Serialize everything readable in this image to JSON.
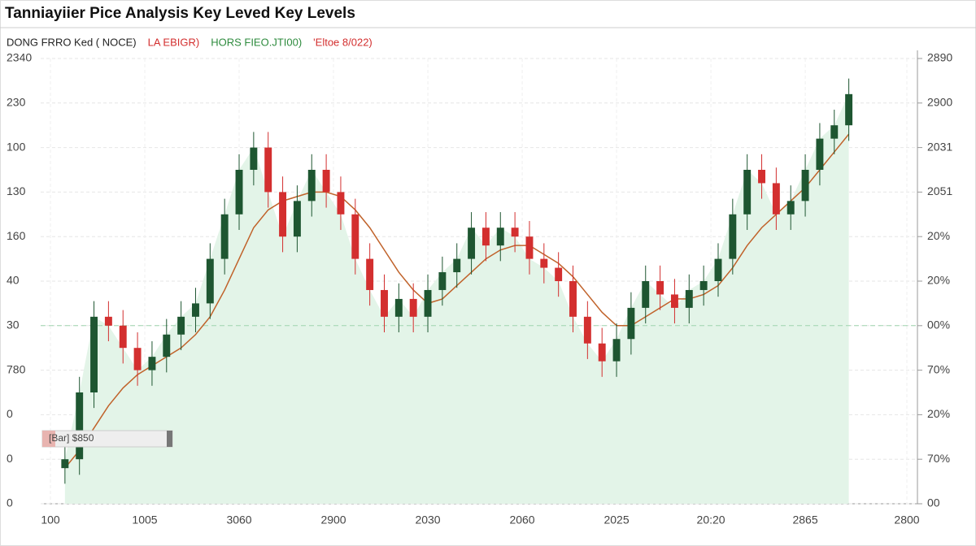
{
  "chart_data": {
    "type": "candlestick",
    "title": "Tanniayiier Pice Analysis Key Leved Key Levels",
    "legend": [
      {
        "text": "DONG FRRO  Ked  ( NOCE)",
        "color": "#222222"
      },
      {
        "text": "LA EBIGR)",
        "color": "#d32f2f"
      },
      {
        "text": "HORS FIEO.JTI00)",
        "color": "#2e8b3e"
      },
      {
        "text": "'Eltoe 8/022)",
        "color": "#d32f2f"
      }
    ],
    "annotation": "[Bar] $850",
    "up_color": "#1e5631",
    "down_color": "#d32f2f",
    "area_color": "#e3f4e8",
    "level": 4,
    "level_color": "#9fd4ae",
    "grid": true,
    "xlim": [
      -1,
      58
    ],
    "xticks": [
      {
        "value": -1,
        "label": "100"
      },
      {
        "value": 5.5,
        "label": "1005"
      },
      {
        "value": 12,
        "label": "3060"
      },
      {
        "value": 18.5,
        "label": "2900"
      },
      {
        "value": 25,
        "label": "2030"
      },
      {
        "value": 31.5,
        "label": "2060"
      },
      {
        "value": 38,
        "label": "2025"
      },
      {
        "value": 44.5,
        "label": "20:20"
      },
      {
        "value": 51,
        "label": "2865"
      },
      {
        "value": 58,
        "label": "2800"
      }
    ],
    "ylim": [
      0,
      10
    ],
    "yticks": [
      0,
      {
        "value": 1,
        "label": "0"
      },
      {
        "value": 2,
        "label": "0"
      },
      {
        "value": 3,
        "label": "780"
      },
      {
        "value": 4,
        "label": "30"
      },
      {
        "value": 5,
        "label": "40"
      },
      {
        "value": 6,
        "label": "160"
      },
      {
        "value": 7,
        "label": "130"
      },
      {
        "value": 8,
        "label": "100"
      },
      {
        "value": 9,
        "label": "230"
      },
      {
        "value": 10,
        "label": "2340"
      }
    ],
    "y2lim": [
      0,
      10
    ],
    "y2ticks": [
      {
        "value": 0,
        "label": "00"
      },
      {
        "value": 1,
        "label": "70%"
      },
      {
        "value": 2,
        "label": "20%"
      },
      {
        "value": 3,
        "label": "70%"
      },
      {
        "value": 4,
        "label": "00%"
      },
      {
        "value": 5,
        "label": "20%"
      },
      {
        "value": 6,
        "label": "20%"
      },
      {
        "value": 7,
        "label": "2051"
      },
      {
        "value": 8,
        "label": "2031"
      },
      {
        "value": 9,
        "label": "2900"
      },
      {
        "value": 10,
        "label": "2890"
      }
    ],
    "open": [
      0.8,
      1.0,
      2.5,
      4.2,
      4.0,
      3.5,
      3.0,
      3.3,
      3.8,
      4.2,
      4.5,
      5.5,
      6.5,
      7.5,
      8.0,
      7.0,
      6.0,
      6.8,
      7.5,
      7.0,
      6.5,
      5.5,
      4.8,
      4.2,
      4.6,
      4.2,
      4.8,
      5.2,
      5.5,
      6.2,
      5.8,
      6.2,
      6.0,
      5.5,
      5.3,
      5.0,
      4.2,
      3.6,
      3.2,
      3.7,
      4.4,
      5.0,
      4.7,
      4.4,
      4.8,
      5.0,
      5.5,
      6.5,
      7.5,
      7.2,
      6.5,
      6.8,
      7.5,
      8.2,
      8.5
    ],
    "high": [
      1.35,
      2.85,
      4.55,
      4.55,
      4.35,
      3.85,
      3.65,
      4.15,
      4.55,
      4.85,
      5.85,
      6.85,
      7.85,
      8.35,
      8.35,
      7.35,
      7.15,
      7.85,
      7.85,
      7.35,
      6.85,
      5.85,
      5.15,
      4.95,
      4.95,
      5.15,
      5.55,
      5.85,
      6.55,
      6.55,
      6.55,
      6.55,
      6.35,
      5.85,
      5.65,
      5.35,
      4.55,
      3.95,
      4.05,
      4.75,
      5.35,
      5.35,
      5.05,
      5.15,
      5.35,
      5.85,
      6.85,
      7.85,
      7.85,
      7.55,
      7.15,
      7.85,
      8.55,
      8.85,
      9.55
    ],
    "low": [
      0.45,
      0.65,
      2.15,
      3.65,
      3.15,
      2.65,
      2.65,
      2.95,
      3.45,
      3.85,
      4.15,
      5.15,
      6.15,
      7.15,
      6.65,
      5.65,
      5.65,
      6.45,
      6.65,
      6.15,
      5.15,
      4.45,
      3.85,
      3.85,
      3.85,
      3.85,
      4.45,
      4.85,
      5.15,
      5.45,
      5.45,
      5.65,
      5.15,
      4.95,
      4.65,
      3.85,
      3.25,
      2.85,
      2.85,
      3.35,
      4.05,
      4.35,
      4.05,
      4.05,
      4.45,
      4.65,
      5.15,
      6.15,
      6.85,
      6.15,
      6.15,
      6.45,
      7.15,
      7.85,
      8.15
    ],
    "close": [
      1.0,
      2.5,
      4.2,
      4.0,
      3.5,
      3.0,
      3.3,
      3.8,
      4.2,
      4.5,
      5.5,
      6.5,
      7.5,
      8.0,
      7.0,
      6.0,
      6.8,
      7.5,
      7.0,
      6.5,
      5.5,
      4.8,
      4.2,
      4.6,
      4.2,
      4.8,
      5.2,
      5.5,
      6.2,
      5.8,
      6.2,
      6.0,
      5.5,
      5.3,
      5.0,
      4.2,
      3.6,
      3.2,
      3.7,
      4.4,
      5.0,
      4.7,
      4.4,
      4.8,
      5.0,
      5.5,
      6.5,
      7.5,
      7.2,
      6.5,
      6.8,
      7.5,
      8.2,
      8.5,
      9.2
    ],
    "series": [
      {
        "color": "#c0622a",
        "values": [
          0.8,
          1.2,
          1.7,
          2.2,
          2.6,
          2.9,
          3.1,
          3.3,
          3.5,
          3.8,
          4.2,
          4.8,
          5.5,
          6.2,
          6.6,
          6.8,
          6.9,
          7.0,
          7.0,
          6.9,
          6.6,
          6.2,
          5.7,
          5.2,
          4.8,
          4.5,
          4.6,
          4.9,
          5.2,
          5.5,
          5.7,
          5.8,
          5.8,
          5.6,
          5.4,
          5.1,
          4.7,
          4.3,
          4.0,
          4.0,
          4.2,
          4.4,
          4.6,
          4.6,
          4.7,
          4.9,
          5.3,
          5.8,
          6.2,
          6.5,
          6.8,
          7.1,
          7.5,
          7.9,
          8.3
        ]
      }
    ]
  }
}
